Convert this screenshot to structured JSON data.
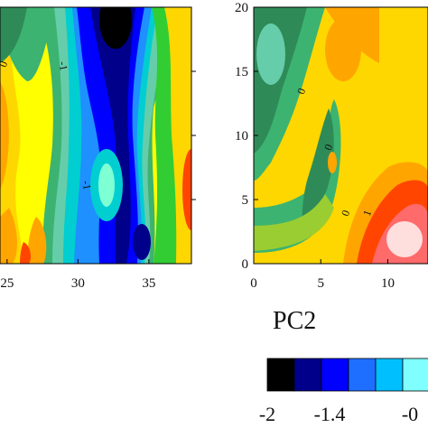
{
  "chart_data": [
    {
      "type": "heatmap",
      "panel": "left",
      "x_ticks": [
        "25",
        "30",
        "35"
      ],
      "x_tick_values": [
        25,
        30,
        35
      ],
      "xlim": [
        24.5,
        38
      ],
      "ylim": [
        0,
        20
      ],
      "contour_labels": [
        "0",
        "-1",
        "-1"
      ],
      "colormap": [
        "#00008b",
        "#0000cd",
        "#1e6bff",
        "#00bfff",
        "#7fffd4",
        "#a6f0e0",
        "#3cb371",
        "#32cd32",
        "#9acd32",
        "#ffff00",
        "#ffd700",
        "#ffa500",
        "#ff4500"
      ]
    },
    {
      "type": "heatmap",
      "panel": "right",
      "x_ticks": [
        "0",
        "5",
        "10"
      ],
      "x_tick_values": [
        0,
        5,
        10
      ],
      "y_ticks": [
        "0",
        "5",
        "10",
        "15",
        "20"
      ],
      "y_tick_values": [
        0,
        5,
        10,
        15,
        20
      ],
      "xlim": [
        0,
        13
      ],
      "ylim": [
        0,
        20
      ],
      "xlabel": "PC2",
      "contour_labels": [
        "0",
        "0",
        "0",
        "1"
      ]
    }
  ],
  "colorbar": {
    "labels": [
      "-2",
      "-1.4",
      "-0"
    ],
    "swatches": [
      "#000000",
      "#00008b",
      "#0000ff",
      "#1e6fff",
      "#00bfff",
      "#7fffff"
    ]
  }
}
